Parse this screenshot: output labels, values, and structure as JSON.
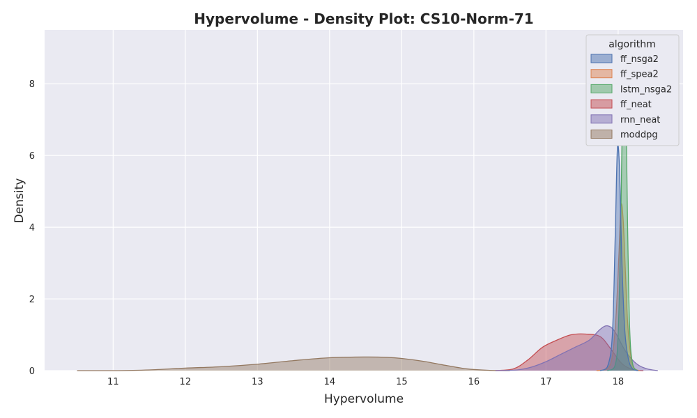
{
  "chart_data": {
    "type": "area",
    "subtype": "kde-density",
    "title": "Hypervolume - Density Plot: CS10-Norm-71",
    "xlabel": "Hypervolume",
    "ylabel": "Density",
    "xlim": [
      10.05,
      18.9
    ],
    "ylim": [
      0,
      9.5
    ],
    "xticks": [
      11,
      12,
      13,
      14,
      15,
      16,
      17,
      18
    ],
    "yticks": [
      0,
      2,
      4,
      6,
      8
    ],
    "grid": true,
    "background": "#eaeaf2",
    "legend": {
      "title": "algorithm",
      "placement": "top-right"
    },
    "series": [
      {
        "name": "moddpg",
        "color": "#937860",
        "x": [
          10.5,
          11.0,
          11.5,
          12.0,
          12.5,
          13.0,
          13.5,
          14.0,
          14.5,
          14.8,
          15.0,
          15.3,
          15.6,
          15.9,
          16.2,
          16.5
        ],
        "y": [
          0.0,
          0.0,
          0.02,
          0.07,
          0.11,
          0.18,
          0.28,
          0.36,
          0.38,
          0.37,
          0.34,
          0.26,
          0.15,
          0.05,
          0.01,
          0.0
        ]
      },
      {
        "name": "ff_neat",
        "color": "#c44e52",
        "x": [
          16.3,
          16.55,
          16.75,
          16.95,
          17.15,
          17.35,
          17.55,
          17.75,
          17.9,
          18.05,
          18.2,
          18.35
        ],
        "y": [
          0.0,
          0.05,
          0.3,
          0.65,
          0.85,
          1.0,
          1.02,
          0.95,
          0.6,
          0.2,
          0.03,
          0.0
        ]
      },
      {
        "name": "rnn_neat",
        "color": "#8172b3",
        "x": [
          16.3,
          16.6,
          16.8,
          17.0,
          17.2,
          17.4,
          17.6,
          17.75,
          17.85,
          17.95,
          18.1,
          18.25,
          18.4,
          18.55
        ],
        "y": [
          0.0,
          0.02,
          0.1,
          0.25,
          0.45,
          0.65,
          0.85,
          1.15,
          1.25,
          1.1,
          0.55,
          0.2,
          0.05,
          0.0
        ]
      },
      {
        "name": "ff_spea2",
        "color": "#dd8452",
        "x": [
          17.7,
          17.85,
          17.92,
          17.97,
          18.01,
          18.04,
          18.07,
          18.1,
          18.13,
          18.17,
          18.22,
          18.3
        ],
        "y": [
          0.0,
          0.05,
          0.4,
          1.5,
          3.2,
          4.6,
          4.2,
          2.8,
          1.4,
          0.5,
          0.08,
          0.0
        ]
      },
      {
        "name": "lstm_nsga2",
        "color": "#55a868",
        "x": [
          17.85,
          17.95,
          18.0,
          18.04,
          18.07,
          18.1,
          18.13,
          18.16,
          18.2,
          18.27
        ],
        "y": [
          0.0,
          0.1,
          1.0,
          4.5,
          8.8,
          8.5,
          4.2,
          1.2,
          0.2,
          0.0
        ]
      },
      {
        "name": "ff_nsga2",
        "color": "#4c72b0",
        "x": [
          17.75,
          17.85,
          17.92,
          17.96,
          17.99,
          18.02,
          18.05,
          18.09,
          18.14,
          18.2,
          18.28
        ],
        "y": [
          0.0,
          0.1,
          1.0,
          3.8,
          6.2,
          5.6,
          3.2,
          1.2,
          0.35,
          0.05,
          0.0
        ]
      }
    ],
    "legend_order": [
      "ff_nsga2",
      "ff_spea2",
      "lstm_nsga2",
      "ff_neat",
      "rnn_neat",
      "moddpg"
    ]
  }
}
